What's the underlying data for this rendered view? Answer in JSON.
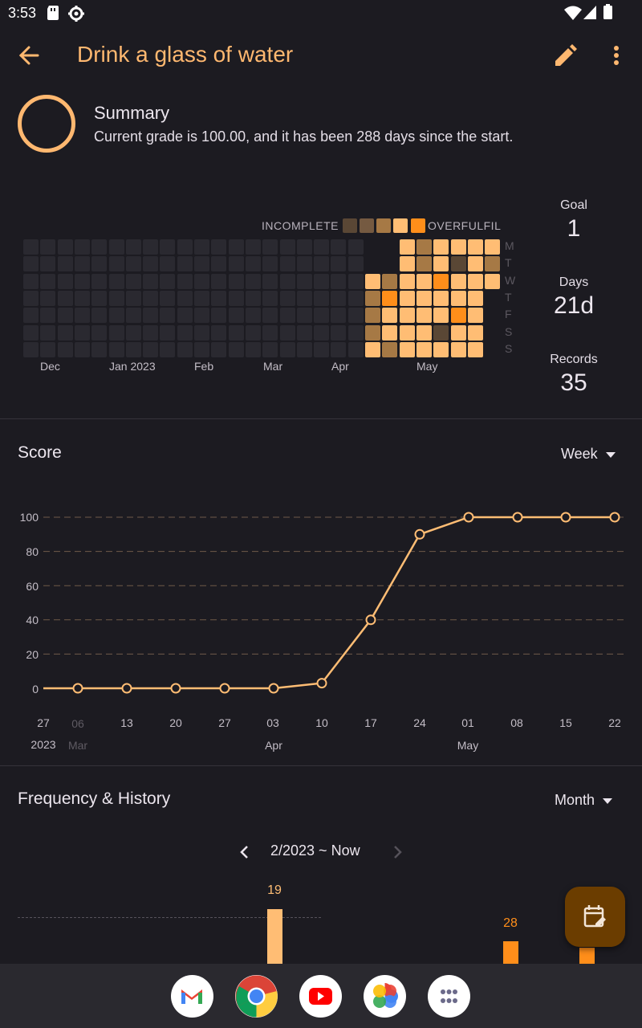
{
  "status_bar": {
    "time": "3:53"
  },
  "app_bar": {
    "title": "Drink a glass of water"
  },
  "summary": {
    "title": "Summary",
    "text": "Current grade is 100.00, and it has been 288 days since the start."
  },
  "heatmap": {
    "legend_low": "INCOMPLETE",
    "legend_high": "OVERFULFIL",
    "legend_colors": [
      "#5a4735",
      "#755a41",
      "#a67945",
      "#ffbd74",
      "#ff8e1a"
    ],
    "empty_color": "#2a2930",
    "month_labels": [
      "Dec",
      "Jan 2023",
      "Feb",
      "Mar",
      "Apr",
      "May"
    ],
    "day_labels": [
      "M",
      "T",
      "W",
      "T",
      "F",
      "S",
      "S"
    ],
    "active_columns": [
      [
        "",
        "",
        "#ffbd74",
        "#a67945",
        "#a67945",
        "#a67945",
        "#ffbd74"
      ],
      [
        "",
        "",
        "#a67945",
        "#ff8e1a",
        "#ffbd74",
        "#ffbd74",
        "#a67945"
      ],
      [
        "#ffbd74",
        "#ffbd74",
        "#ffbd74",
        "#ffbd74",
        "#ffbd74",
        "#ffbd74",
        "#ffbd74"
      ],
      [
        "#a67945",
        "#a67945",
        "#ffbd74",
        "#ffbd74",
        "#ffbd74",
        "#ffbd74",
        "#ffbd74"
      ],
      [
        "#ffbd74",
        "#ffbd74",
        "#ff8e1a",
        "#ffbd74",
        "#ffbd74",
        "#5a4735",
        "#ffbd74"
      ],
      [
        "#ffbd74",
        "#5a4735",
        "#ffbd74",
        "#ffbd74",
        "#ff8e1a",
        "#ffbd74",
        "#ffbd74"
      ],
      [
        "#ffbd74",
        "#ffbd74",
        "#ffbd74",
        "#ffbd74",
        "#ffbd74",
        "#ffbd74",
        "#ffbd74"
      ],
      [
        "#ffbd74",
        "#a67945",
        "#ffbd74",
        "",
        "",
        "",
        ""
      ]
    ]
  },
  "stats": {
    "goal_label": "Goal",
    "goal_value": "1",
    "days_label": "Days",
    "days_value": "21d",
    "records_label": "Records",
    "records_value": "35"
  },
  "score": {
    "title": "Score",
    "period": "Week",
    "y_labels": [
      "100",
      "80",
      "60",
      "40",
      "20",
      "0"
    ],
    "x_labels": [
      "27",
      "06",
      "13",
      "20",
      "27",
      "03",
      "10",
      "17",
      "24",
      "01",
      "08",
      "15",
      "22"
    ],
    "x_sublabels": [
      "2023",
      "Mar",
      "Apr",
      "May"
    ]
  },
  "frequency": {
    "title": "Frequency & History",
    "period": "Month",
    "range": "2/2023 ~ Now",
    "bar_labels": [
      "19",
      "28"
    ]
  },
  "chart_data": {
    "type": "line",
    "title": "Score",
    "x": [
      "27",
      "06",
      "13",
      "20",
      "27",
      "03",
      "10",
      "17",
      "24",
      "01",
      "08",
      "15",
      "22"
    ],
    "y": [
      null,
      0,
      0,
      0,
      0,
      0,
      3,
      40,
      90,
      100,
      100,
      100,
      100
    ],
    "ylim": [
      0,
      100
    ],
    "yticks": [
      0,
      20,
      40,
      60,
      80,
      100
    ],
    "line_color": "#ffbd74"
  },
  "colors": {
    "accent": "#ffb870",
    "background": "#1c1b21",
    "line": "#ffbd74",
    "grid": "#6f5a49"
  }
}
